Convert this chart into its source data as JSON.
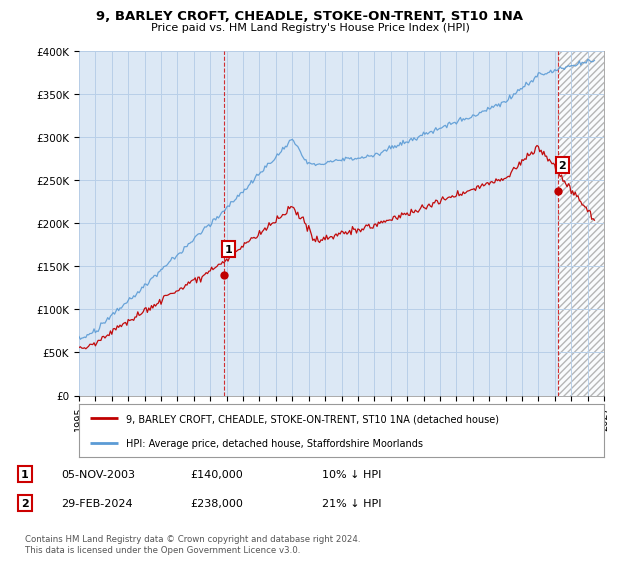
{
  "title": "9, BARLEY CROFT, CHEADLE, STOKE-ON-TRENT, ST10 1NA",
  "subtitle": "Price paid vs. HM Land Registry's House Price Index (HPI)",
  "ylim": [
    0,
    400000
  ],
  "yticks": [
    0,
    50000,
    100000,
    150000,
    200000,
    250000,
    300000,
    350000,
    400000
  ],
  "ytick_labels": [
    "£0",
    "£50K",
    "£100K",
    "£150K",
    "£200K",
    "£250K",
    "£300K",
    "£350K",
    "£400K"
  ],
  "x_start_year": 1995,
  "x_end_year": 2027,
  "hpi_color": "#5b9bd5",
  "price_color": "#c00000",
  "marker1_x": 2003.83,
  "marker1_value": 140000,
  "marker2_x": 2024.17,
  "marker2_value": 238000,
  "legend_line1": "9, BARLEY CROFT, CHEADLE, STOKE-ON-TRENT, ST10 1NA (detached house)",
  "legend_line2": "HPI: Average price, detached house, Staffordshire Moorlands",
  "annotation1_date": "05-NOV-2003",
  "annotation1_price": "£140,000",
  "annotation1_hpi": "10% ↓ HPI",
  "annotation2_date": "29-FEB-2024",
  "annotation2_price": "£238,000",
  "annotation2_hpi": "21% ↓ HPI",
  "footer": "Contains HM Land Registry data © Crown copyright and database right 2024.\nThis data is licensed under the Open Government Licence v3.0.",
  "bg_color": "#ffffff",
  "chart_bg_color": "#dce8f5",
  "grid_color": "#b8cfe8"
}
